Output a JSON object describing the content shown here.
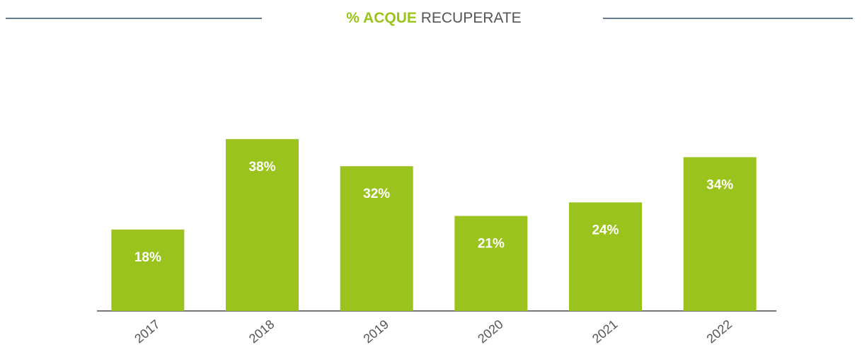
{
  "chart_data": {
    "type": "bar",
    "title": [
      "% ACQUE",
      "RECUPERATE"
    ],
    "categories": [
      "2017",
      "2018",
      "2019",
      "2020",
      "2021",
      "2022"
    ],
    "values": [
      18,
      38,
      32,
      21,
      24,
      34
    ],
    "value_labels": [
      "18%",
      "38%",
      "32%",
      "21%",
      "24%",
      "34%"
    ],
    "color": "#9bc31d",
    "ylim": [
      0,
      40
    ]
  }
}
